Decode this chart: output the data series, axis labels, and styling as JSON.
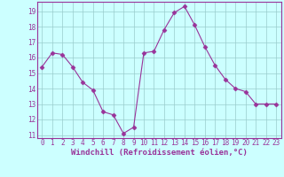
{
  "x": [
    0,
    1,
    2,
    3,
    4,
    5,
    6,
    7,
    8,
    9,
    10,
    11,
    12,
    13,
    14,
    15,
    16,
    17,
    18,
    19,
    20,
    21,
    22,
    23
  ],
  "y": [
    15.4,
    16.3,
    16.2,
    15.4,
    14.4,
    13.9,
    12.5,
    12.3,
    11.1,
    11.5,
    16.3,
    16.4,
    17.8,
    18.9,
    19.3,
    18.1,
    16.7,
    15.5,
    14.6,
    14.0,
    13.8,
    13.0,
    13.0,
    13.0
  ],
  "line_color": "#993399",
  "marker": "D",
  "marker_size": 2.5,
  "bg_color": "#ccffff",
  "grid_color": "#99cccc",
  "xlabel": "Windchill (Refroidissement éolien,°C)",
  "xlabel_fontsize": 6.5,
  "ylim": [
    10.8,
    19.6
  ],
  "xlim": [
    -0.5,
    23.5
  ],
  "yticks": [
    11,
    12,
    13,
    14,
    15,
    16,
    17,
    18,
    19
  ],
  "xticks": [
    0,
    1,
    2,
    3,
    4,
    5,
    6,
    7,
    8,
    9,
    10,
    11,
    12,
    13,
    14,
    15,
    16,
    17,
    18,
    19,
    20,
    21,
    22,
    23
  ],
  "tick_color": "#993399",
  "tick_fontsize": 5.5,
  "spine_color": "#993399"
}
